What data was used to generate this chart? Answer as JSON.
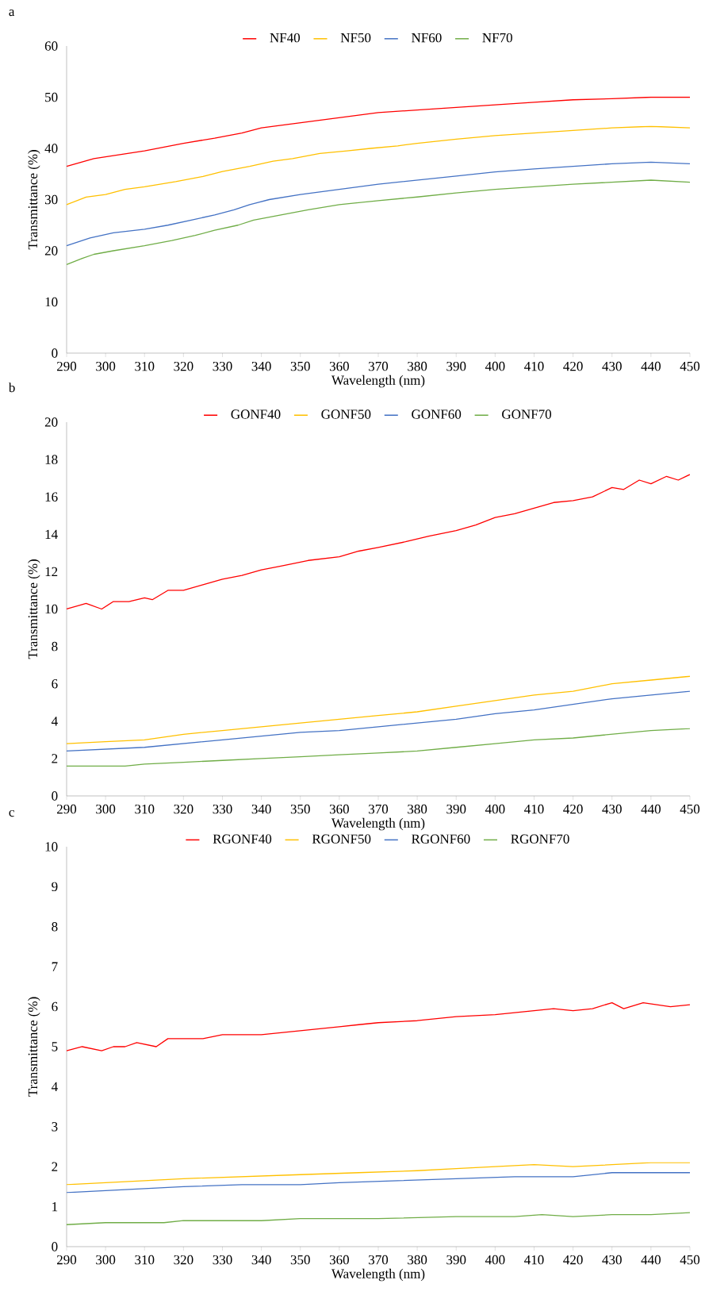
{
  "chart_data": [
    {
      "type": "line",
      "title": "a",
      "xlabel": "Wavelength (nm)",
      "ylabel": "Transmittance (%)",
      "xlim": [
        290,
        450
      ],
      "ylim": [
        0,
        60
      ],
      "xticks": [
        290,
        300,
        310,
        320,
        330,
        340,
        350,
        360,
        370,
        380,
        390,
        400,
        410,
        420,
        430,
        440,
        450
      ],
      "yticks": [
        0,
        10,
        20,
        30,
        40,
        50,
        60
      ],
      "legend": "top",
      "grid": false,
      "marker": "none",
      "line_style": "solid",
      "series": [
        {
          "name": "NF40",
          "color": "#ff0000",
          "x": [
            290,
            297,
            310,
            320,
            328,
            335,
            340,
            350,
            360,
            370,
            380,
            390,
            400,
            410,
            420,
            430,
            440,
            450
          ],
          "values": [
            36.5,
            38,
            39.5,
            41,
            42,
            43,
            44,
            45,
            46,
            47,
            47.5,
            48,
            48.5,
            49,
            49.5,
            49.7,
            50,
            50
          ]
        },
        {
          "name": "NF50",
          "color": "#ffc000",
          "x": [
            290,
            295,
            300,
            305,
            310,
            318,
            325,
            330,
            337,
            343,
            348,
            355,
            362,
            368,
            375,
            380,
            390,
            400,
            410,
            420,
            430,
            440,
            450
          ],
          "values": [
            29,
            30.5,
            31,
            32,
            32.5,
            33.5,
            34.5,
            35.5,
            36.5,
            37.5,
            38,
            39,
            39.5,
            40,
            40.5,
            41,
            41.8,
            42.5,
            43,
            43.5,
            44,
            44.3,
            44
          ]
        },
        {
          "name": "NF60",
          "color": "#4472c4",
          "x": [
            290,
            296,
            302,
            310,
            316,
            322,
            328,
            333,
            337,
            342,
            350,
            360,
            370,
            380,
            390,
            400,
            410,
            420,
            430,
            440,
            450
          ],
          "values": [
            21,
            22.5,
            23.5,
            24.2,
            25,
            26,
            27,
            28,
            29,
            30,
            31,
            32,
            33,
            33.8,
            34.6,
            35.4,
            36,
            36.5,
            37,
            37.3,
            37
          ]
        },
        {
          "name": "NF70",
          "color": "#70ad47",
          "x": [
            290,
            294,
            297,
            302,
            310,
            317,
            323,
            328,
            334,
            338,
            345,
            352,
            360,
            370,
            380,
            390,
            400,
            410,
            420,
            430,
            440,
            450
          ],
          "values": [
            17.3,
            18.5,
            19.3,
            20,
            21,
            22,
            23,
            24,
            25,
            26,
            27,
            28,
            29,
            29.8,
            30.5,
            31.3,
            32,
            32.5,
            33,
            33.4,
            33.8,
            33.4
          ]
        }
      ]
    },
    {
      "type": "line",
      "title": "b",
      "xlabel": "Wavelength (nm)",
      "ylabel": "Transmittance (%)",
      "xlim": [
        290,
        450
      ],
      "ylim": [
        0,
        20
      ],
      "xticks": [
        290,
        300,
        310,
        320,
        330,
        340,
        350,
        360,
        370,
        380,
        390,
        400,
        410,
        420,
        430,
        440,
        450
      ],
      "yticks": [
        0,
        2,
        4,
        6,
        8,
        10,
        12,
        14,
        16,
        18,
        20
      ],
      "legend": "top",
      "grid": false,
      "marker": "none",
      "line_style": "solid",
      "series": [
        {
          "name": "GONF40",
          "color": "#ff0000",
          "x": [
            290,
            295,
            299,
            302,
            306,
            310,
            312,
            316,
            320,
            325,
            330,
            335,
            340,
            345,
            352,
            360,
            365,
            370,
            377,
            383,
            390,
            395,
            400,
            405,
            410,
            415,
            420,
            425,
            430,
            433,
            437,
            440,
            444,
            447,
            450
          ],
          "values": [
            10,
            10.3,
            10,
            10.4,
            10.4,
            10.6,
            10.5,
            11,
            11,
            11.3,
            11.6,
            11.8,
            12.1,
            12.3,
            12.6,
            12.8,
            13.1,
            13.3,
            13.6,
            13.9,
            14.2,
            14.5,
            14.9,
            15.1,
            15.4,
            15.7,
            15.8,
            16,
            16.5,
            16.4,
            16.9,
            16.7,
            17.1,
            16.9,
            17.2
          ]
        },
        {
          "name": "GONF50",
          "color": "#ffc000",
          "x": [
            290,
            300,
            310,
            320,
            330,
            340,
            350,
            360,
            370,
            380,
            390,
            400,
            410,
            420,
            425,
            430,
            440,
            450
          ],
          "values": [
            2.8,
            2.9,
            3,
            3.3,
            3.5,
            3.7,
            3.9,
            4.1,
            4.3,
            4.5,
            4.8,
            5.1,
            5.4,
            5.6,
            5.8,
            6,
            6.2,
            6.4
          ]
        },
        {
          "name": "GONF60",
          "color": "#4472c4",
          "x": [
            290,
            300,
            310,
            320,
            330,
            340,
            350,
            360,
            370,
            380,
            390,
            400,
            410,
            420,
            430,
            440,
            450
          ],
          "values": [
            2.4,
            2.5,
            2.6,
            2.8,
            3,
            3.2,
            3.4,
            3.5,
            3.7,
            3.9,
            4.1,
            4.4,
            4.6,
            4.9,
            5.2,
            5.4,
            5.6
          ]
        },
        {
          "name": "GONF70",
          "color": "#70ad47",
          "x": [
            290,
            305,
            310,
            320,
            330,
            340,
            350,
            360,
            370,
            380,
            390,
            400,
            410,
            420,
            430,
            440,
            450
          ],
          "values": [
            1.6,
            1.6,
            1.7,
            1.8,
            1.9,
            2,
            2.1,
            2.2,
            2.3,
            2.4,
            2.6,
            2.8,
            3,
            3.1,
            3.3,
            3.5,
            3.6
          ]
        }
      ]
    },
    {
      "type": "line",
      "title": "c",
      "xlabel": "Wavelength (nm)",
      "ylabel": "Transmittance (%)",
      "xlim": [
        290,
        450
      ],
      "ylim": [
        0,
        10
      ],
      "xticks": [
        290,
        300,
        310,
        320,
        330,
        340,
        350,
        360,
        370,
        380,
        390,
        400,
        410,
        420,
        430,
        440,
        450
      ],
      "yticks": [
        0,
        1,
        2,
        3,
        4,
        5,
        6,
        7,
        8,
        9,
        10
      ],
      "legend": "top",
      "grid": false,
      "marker": "none",
      "line_style": "solid",
      "series": [
        {
          "name": "RGONF40",
          "color": "#ff0000",
          "x": [
            290,
            294,
            299,
            302,
            305,
            308,
            313,
            316,
            320,
            325,
            330,
            340,
            350,
            360,
            365,
            370,
            380,
            390,
            400,
            410,
            415,
            420,
            425,
            430,
            433,
            438,
            445,
            450
          ],
          "values": [
            4.9,
            5,
            4.9,
            5,
            5,
            5.1,
            5,
            5.2,
            5.2,
            5.2,
            5.3,
            5.3,
            5.4,
            5.5,
            5.55,
            5.6,
            5.65,
            5.75,
            5.8,
            5.9,
            5.95,
            5.9,
            5.95,
            6.1,
            5.95,
            6.1,
            6,
            6.05
          ]
        },
        {
          "name": "RGONF50",
          "color": "#ffc000",
          "x": [
            290,
            300,
            310,
            320,
            335,
            350,
            365,
            380,
            390,
            400,
            410,
            420,
            430,
            440,
            450
          ],
          "values": [
            1.55,
            1.6,
            1.65,
            1.7,
            1.75,
            1.8,
            1.85,
            1.9,
            1.95,
            2,
            2.05,
            2,
            2.05,
            2.1,
            2.1
          ]
        },
        {
          "name": "RGONF60",
          "color": "#4472c4",
          "x": [
            290,
            300,
            310,
            320,
            335,
            350,
            360,
            375,
            390,
            405,
            420,
            430,
            440,
            450
          ],
          "values": [
            1.35,
            1.4,
            1.45,
            1.5,
            1.55,
            1.55,
            1.6,
            1.65,
            1.7,
            1.75,
            1.75,
            1.85,
            1.85,
            1.85
          ]
        },
        {
          "name": "RGONF70",
          "color": "#70ad47",
          "x": [
            290,
            300,
            315,
            320,
            340,
            350,
            370,
            390,
            405,
            412,
            420,
            430,
            440,
            450
          ],
          "values": [
            0.55,
            0.6,
            0.6,
            0.65,
            0.65,
            0.7,
            0.7,
            0.75,
            0.75,
            0.8,
            0.75,
            0.8,
            0.8,
            0.85
          ]
        }
      ]
    }
  ]
}
